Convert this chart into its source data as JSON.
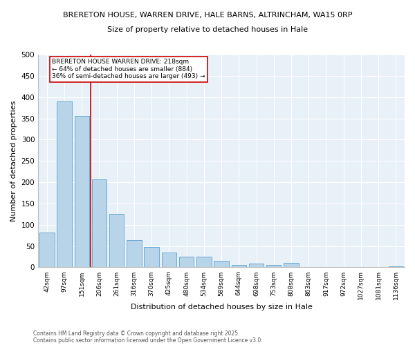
{
  "title1": "BRERETON HOUSE, WARREN DRIVE, HALE BARNS, ALTRINCHAM, WA15 0RP",
  "title2": "Size of property relative to detached houses in Hale",
  "xlabel": "Distribution of detached houses by size in Hale",
  "ylabel": "Number of detached properties",
  "bar_labels": [
    "42sqm",
    "97sqm",
    "151sqm",
    "206sqm",
    "261sqm",
    "316sqm",
    "370sqm",
    "425sqm",
    "480sqm",
    "534sqm",
    "589sqm",
    "644sqm",
    "698sqm",
    "753sqm",
    "808sqm",
    "863sqm",
    "917sqm",
    "972sqm",
    "1027sqm",
    "1081sqm",
    "1136sqm"
  ],
  "bar_values": [
    82,
    390,
    355,
    207,
    126,
    64,
    47,
    34,
    25,
    25,
    15,
    5,
    9,
    5,
    10,
    1,
    0,
    0,
    0,
    0,
    3
  ],
  "bar_color": "#b8d4e8",
  "bar_edgecolor": "#6aaad4",
  "bg_color": "#e8f0f8",
  "grid_color": "#ffffff",
  "vline_color": "#cc0000",
  "annotation_text": "BRERETON HOUSE WARREN DRIVE: 218sqm\n← 64% of detached houses are smaller (884)\n36% of semi-detached houses are larger (493) →",
  "annotation_box_edgecolor": "#cc0000",
  "ylim": [
    0,
    500
  ],
  "yticks": [
    0,
    50,
    100,
    150,
    200,
    250,
    300,
    350,
    400,
    450,
    500
  ],
  "footer1": "Contains HM Land Registry data © Crown copyright and database right 2025.",
  "footer2": "Contains public sector information licensed under the Open Government Licence v3.0."
}
